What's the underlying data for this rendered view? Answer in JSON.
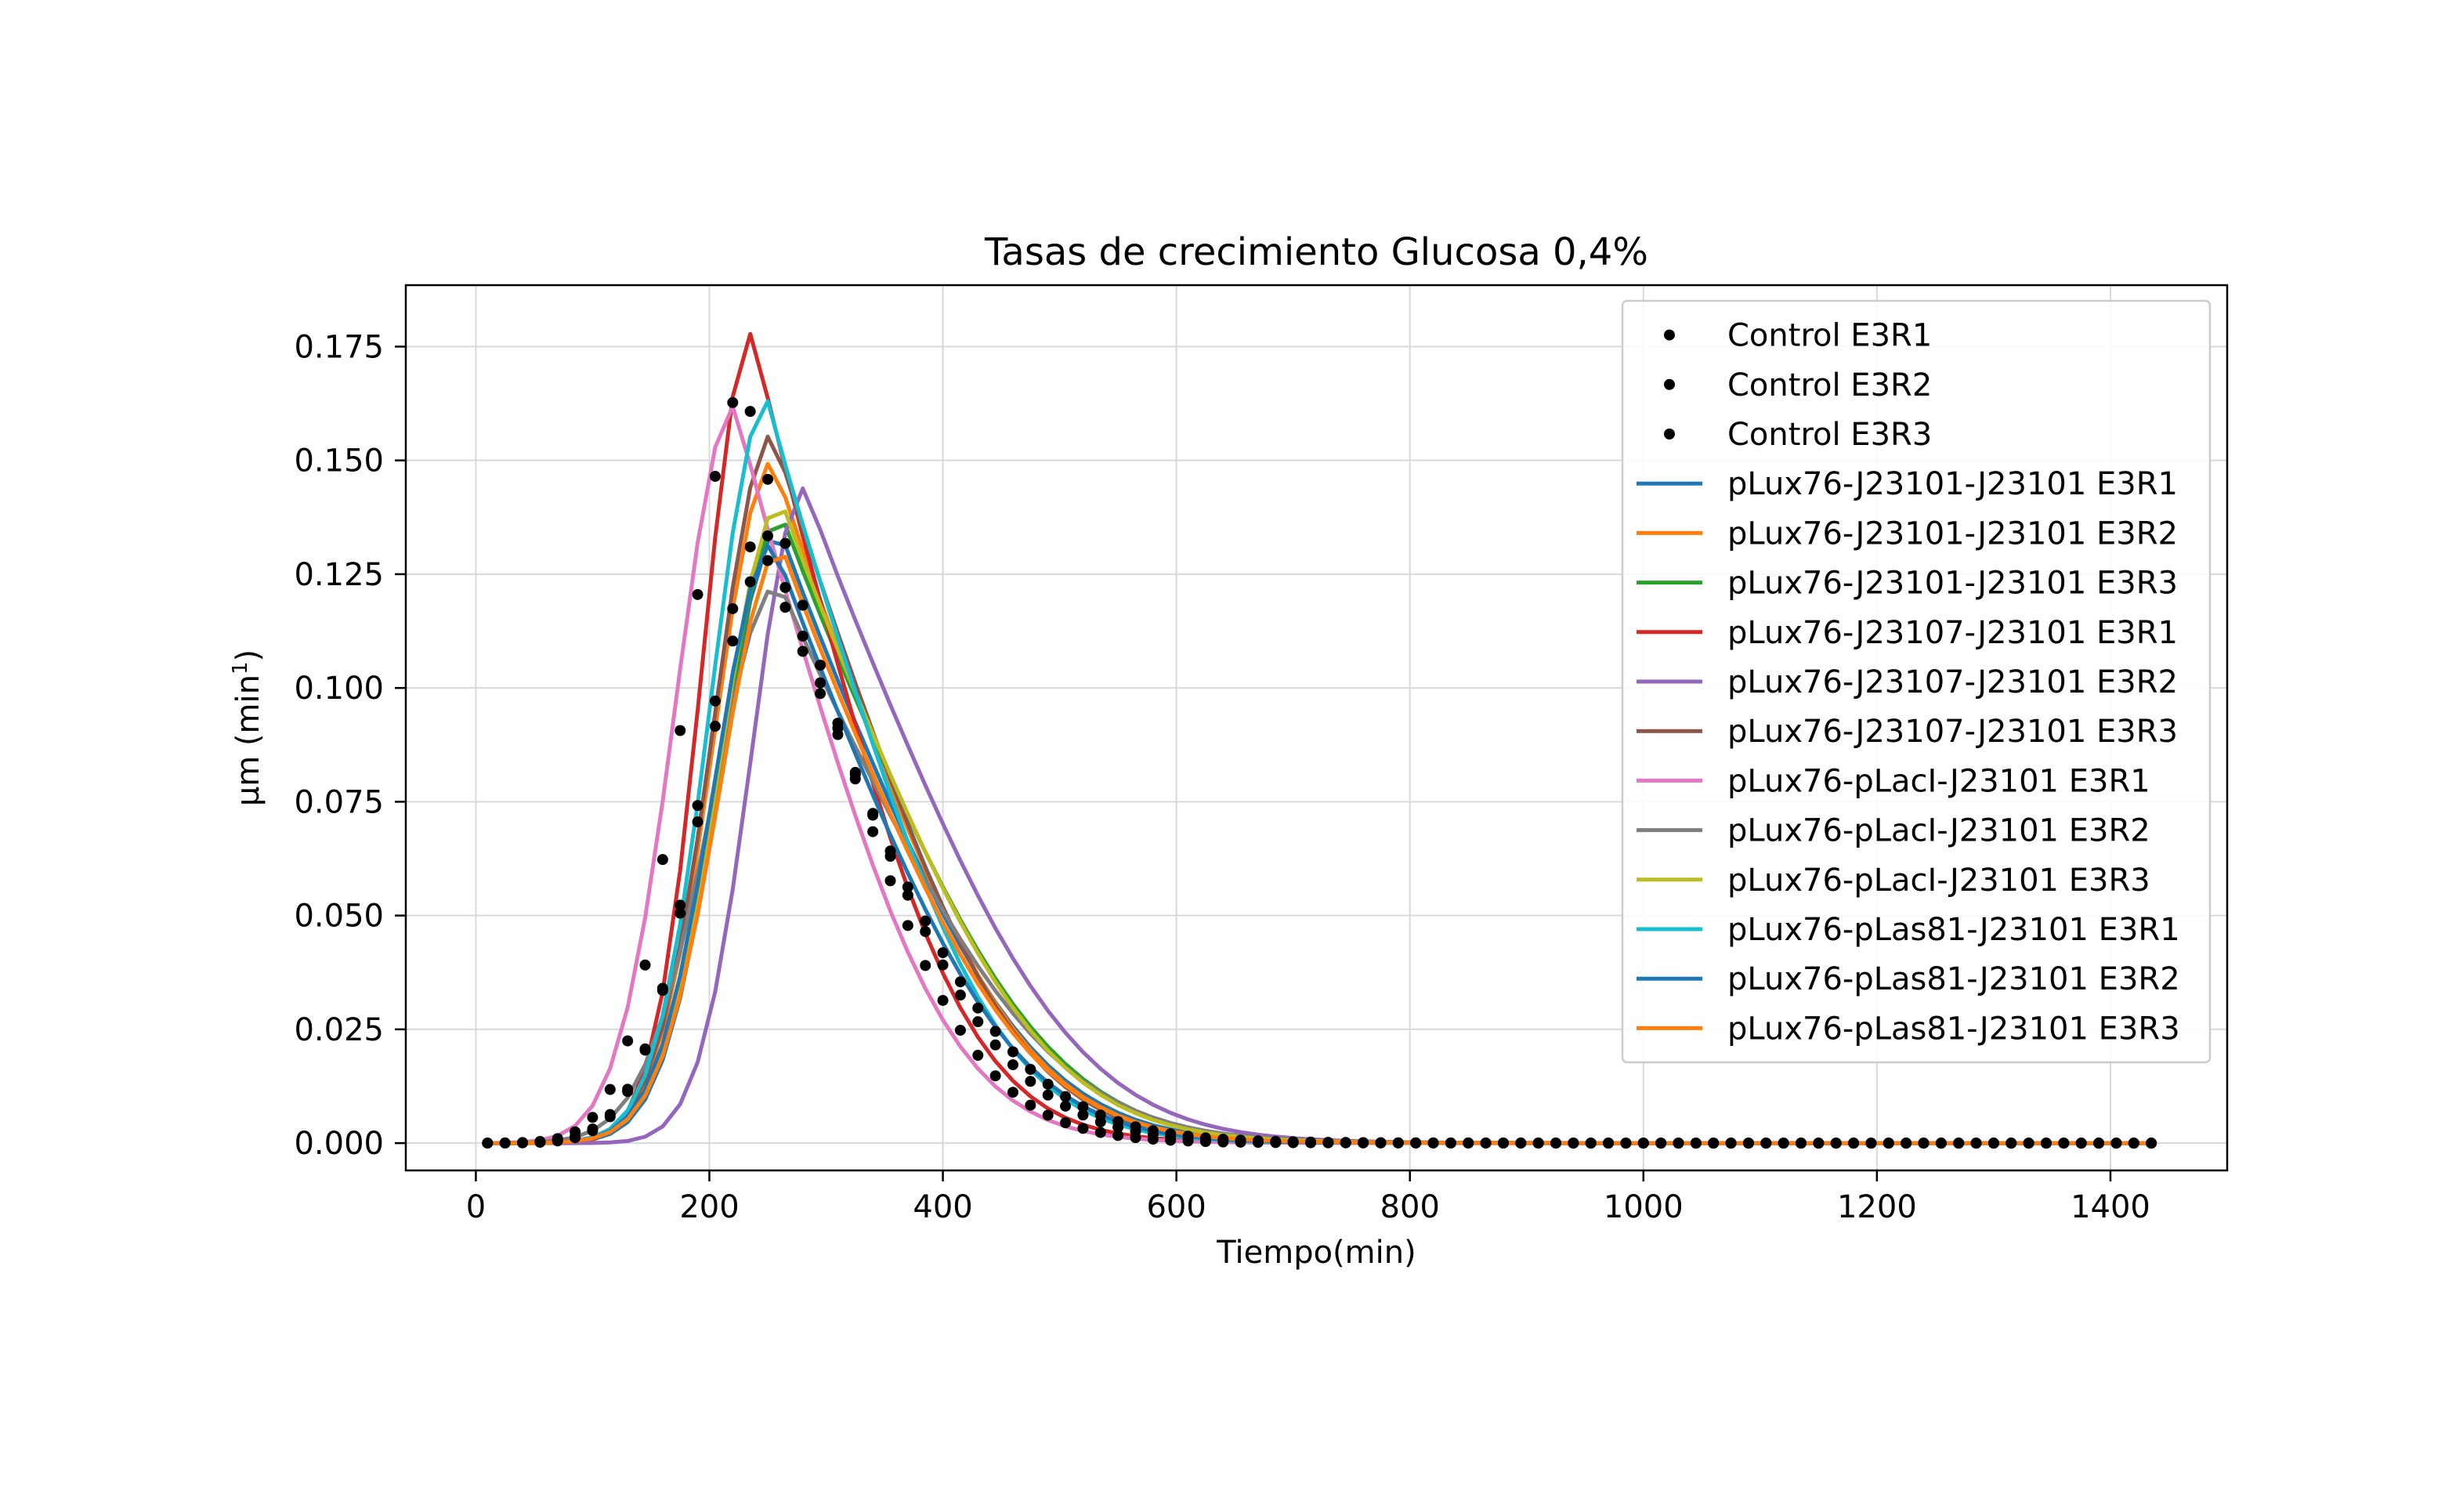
{
  "chart_data": {
    "type": "line",
    "title": "Tasas de crecimiento Glucosa 0,4%",
    "xlabel": "Tiempo(min)",
    "ylabel": "μm (min",
    "ylabel_sup": "1",
    "ylabel_close": ")",
    "xlim": [
      -60,
      1500
    ],
    "ylim": [
      -0.006,
      0.1885
    ],
    "x_ticks": [
      0,
      200,
      400,
      600,
      800,
      1000,
      1200,
      1400
    ],
    "x_tick_labels": [
      "0",
      "200",
      "400",
      "600",
      "800",
      "1000",
      "1200",
      "1400"
    ],
    "y_ticks": [
      0.0,
      0.025,
      0.05,
      0.075,
      0.1,
      0.125,
      0.15,
      0.175
    ],
    "y_tick_labels": [
      "0.000",
      "0.025",
      "0.050",
      "0.075",
      "0.100",
      "0.125",
      "0.150",
      "0.175"
    ],
    "grid": true,
    "legend_position": "upper right",
    "x_start": 10,
    "x_step": 15,
    "x_end": 1440,
    "series": [
      {
        "name": "Control E3R1",
        "style": "dots",
        "color": "#000000",
        "peak_x": 230,
        "peak_y": 0.166,
        "sigma_left": 50,
        "sigma_right": 78
      },
      {
        "name": "Control E3R2",
        "style": "dots",
        "color": "#000000",
        "peak_x": 250,
        "peak_y": 0.128,
        "sigma_left": 55,
        "sigma_right": 90
      },
      {
        "name": "Control E3R3",
        "style": "dots",
        "color": "#000000",
        "peak_x": 248,
        "peak_y": 0.135,
        "sigma_left": 53,
        "sigma_right": 85
      },
      {
        "name": "pLux76-J23101-J23101 E3R1",
        "style": "line",
        "color": "#1f77b4",
        "peak_x": 260,
        "peak_y": 0.135,
        "sigma_left": 50,
        "sigma_right": 92
      },
      {
        "name": "pLux76-J23101-J23101 E3R2",
        "style": "line",
        "color": "#ff7f0e",
        "peak_x": 255,
        "peak_y": 0.15,
        "sigma_left": 50,
        "sigma_right": 90
      },
      {
        "name": "pLux76-J23101-J23101 E3R3",
        "style": "line",
        "color": "#2ca02c",
        "peak_x": 262,
        "peak_y": 0.138,
        "sigma_left": 52,
        "sigma_right": 97
      },
      {
        "name": "pLux76-J23107-J23101 E3R1",
        "style": "line",
        "color": "#d62728",
        "peak_x": 237,
        "peak_y": 0.178,
        "sigma_left": 42,
        "sigma_right": 78
      },
      {
        "name": "pLux76-J23107-J23101 E3R2",
        "style": "line",
        "color": "#9467bd",
        "peak_x": 282,
        "peak_y": 0.144,
        "sigma_left": 45,
        "sigma_right": 98
      },
      {
        "name": "pLux76-J23107-J23101 E3R3",
        "style": "line",
        "color": "#8c564b",
        "peak_x": 255,
        "peak_y": 0.156,
        "sigma_left": 50,
        "sigma_right": 88
      },
      {
        "name": "pLux76-pLacI-J23101 E3R1",
        "style": "line",
        "color": "#e377c2",
        "peak_x": 222,
        "peak_y": 0.162,
        "sigma_left": 50,
        "sigma_right": 78
      },
      {
        "name": "pLux76-pLacI-J23101 E3R2",
        "style": "line",
        "color": "#7f7f7f",
        "peak_x": 260,
        "peak_y": 0.123,
        "sigma_left": 58,
        "sigma_right": 100
      },
      {
        "name": "pLux76-pLacI-J23101 E3R3",
        "style": "line",
        "color": "#bcbd22",
        "peak_x": 262,
        "peak_y": 0.141,
        "sigma_left": 52,
        "sigma_right": 95
      },
      {
        "name": "pLux76-pLas81-J23101 E3R1",
        "style": "line",
        "color": "#17becf",
        "peak_x": 250,
        "peak_y": 0.163,
        "sigma_left": 48,
        "sigma_right": 84
      },
      {
        "name": "pLux76-pLas81-J23101 E3R2",
        "style": "line",
        "color": "#1f77b4",
        "peak_x": 255,
        "peak_y": 0.132,
        "sigma_left": 50,
        "sigma_right": 88
      },
      {
        "name": "pLux76-pLas81-J23101 E3R3",
        "style": "line",
        "color": "#ff7f0e",
        "peak_x": 262,
        "peak_y": 0.131,
        "sigma_left": 52,
        "sigma_right": 90
      }
    ]
  }
}
